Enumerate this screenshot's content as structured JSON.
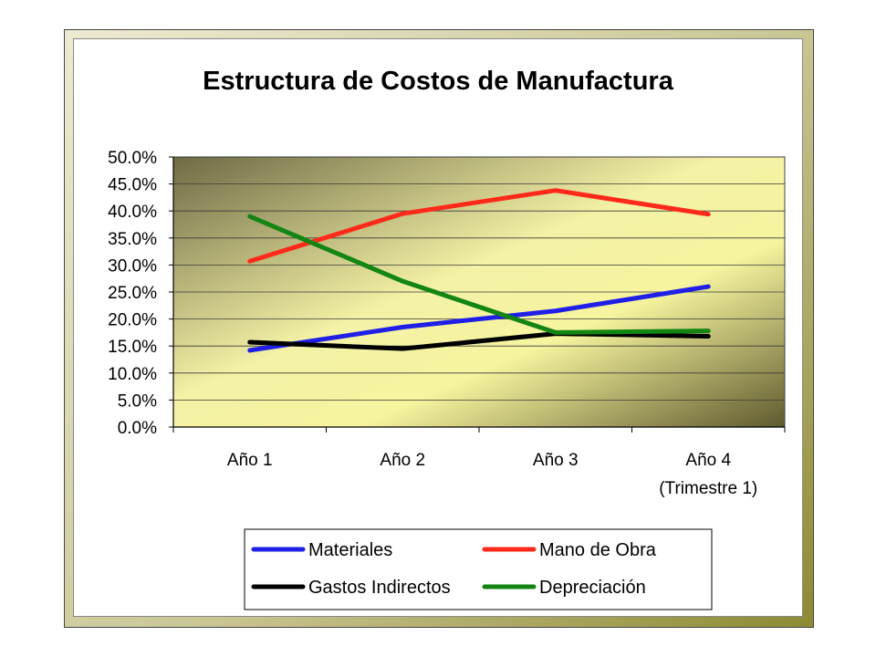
{
  "chart_data": {
    "type": "line",
    "title": "Estructura de Costos de Manufactura",
    "categories": [
      [
        "Año 1"
      ],
      [
        "Año 2"
      ],
      [
        "Año 3"
      ],
      [
        "Año 4",
        "(Trimestre 1)"
      ]
    ],
    "ylim": [
      0,
      50
    ],
    "yticks": [
      "0.0%",
      "5.0%",
      "10.0%",
      "15.0%",
      "20.0%",
      "25.0%",
      "30.0%",
      "35.0%",
      "40.0%",
      "45.0%",
      "50.0%"
    ],
    "grid": true,
    "legend_position": "bottom",
    "series": [
      {
        "name": "Materiales",
        "color": "#1f1fe8",
        "values": [
          14.2,
          18.5,
          21.5,
          26.0
        ]
      },
      {
        "name": "Mano de Obra",
        "color": "#ff2a1a",
        "values": [
          30.7,
          39.5,
          43.8,
          39.4
        ]
      },
      {
        "name": "Gastos Indirectos",
        "color": "#000000",
        "values": [
          15.7,
          14.5,
          17.3,
          16.8
        ]
      },
      {
        "name": "Depreciación",
        "color": "#138513",
        "values": [
          39.0,
          27.0,
          17.5,
          17.8
        ]
      }
    ]
  }
}
